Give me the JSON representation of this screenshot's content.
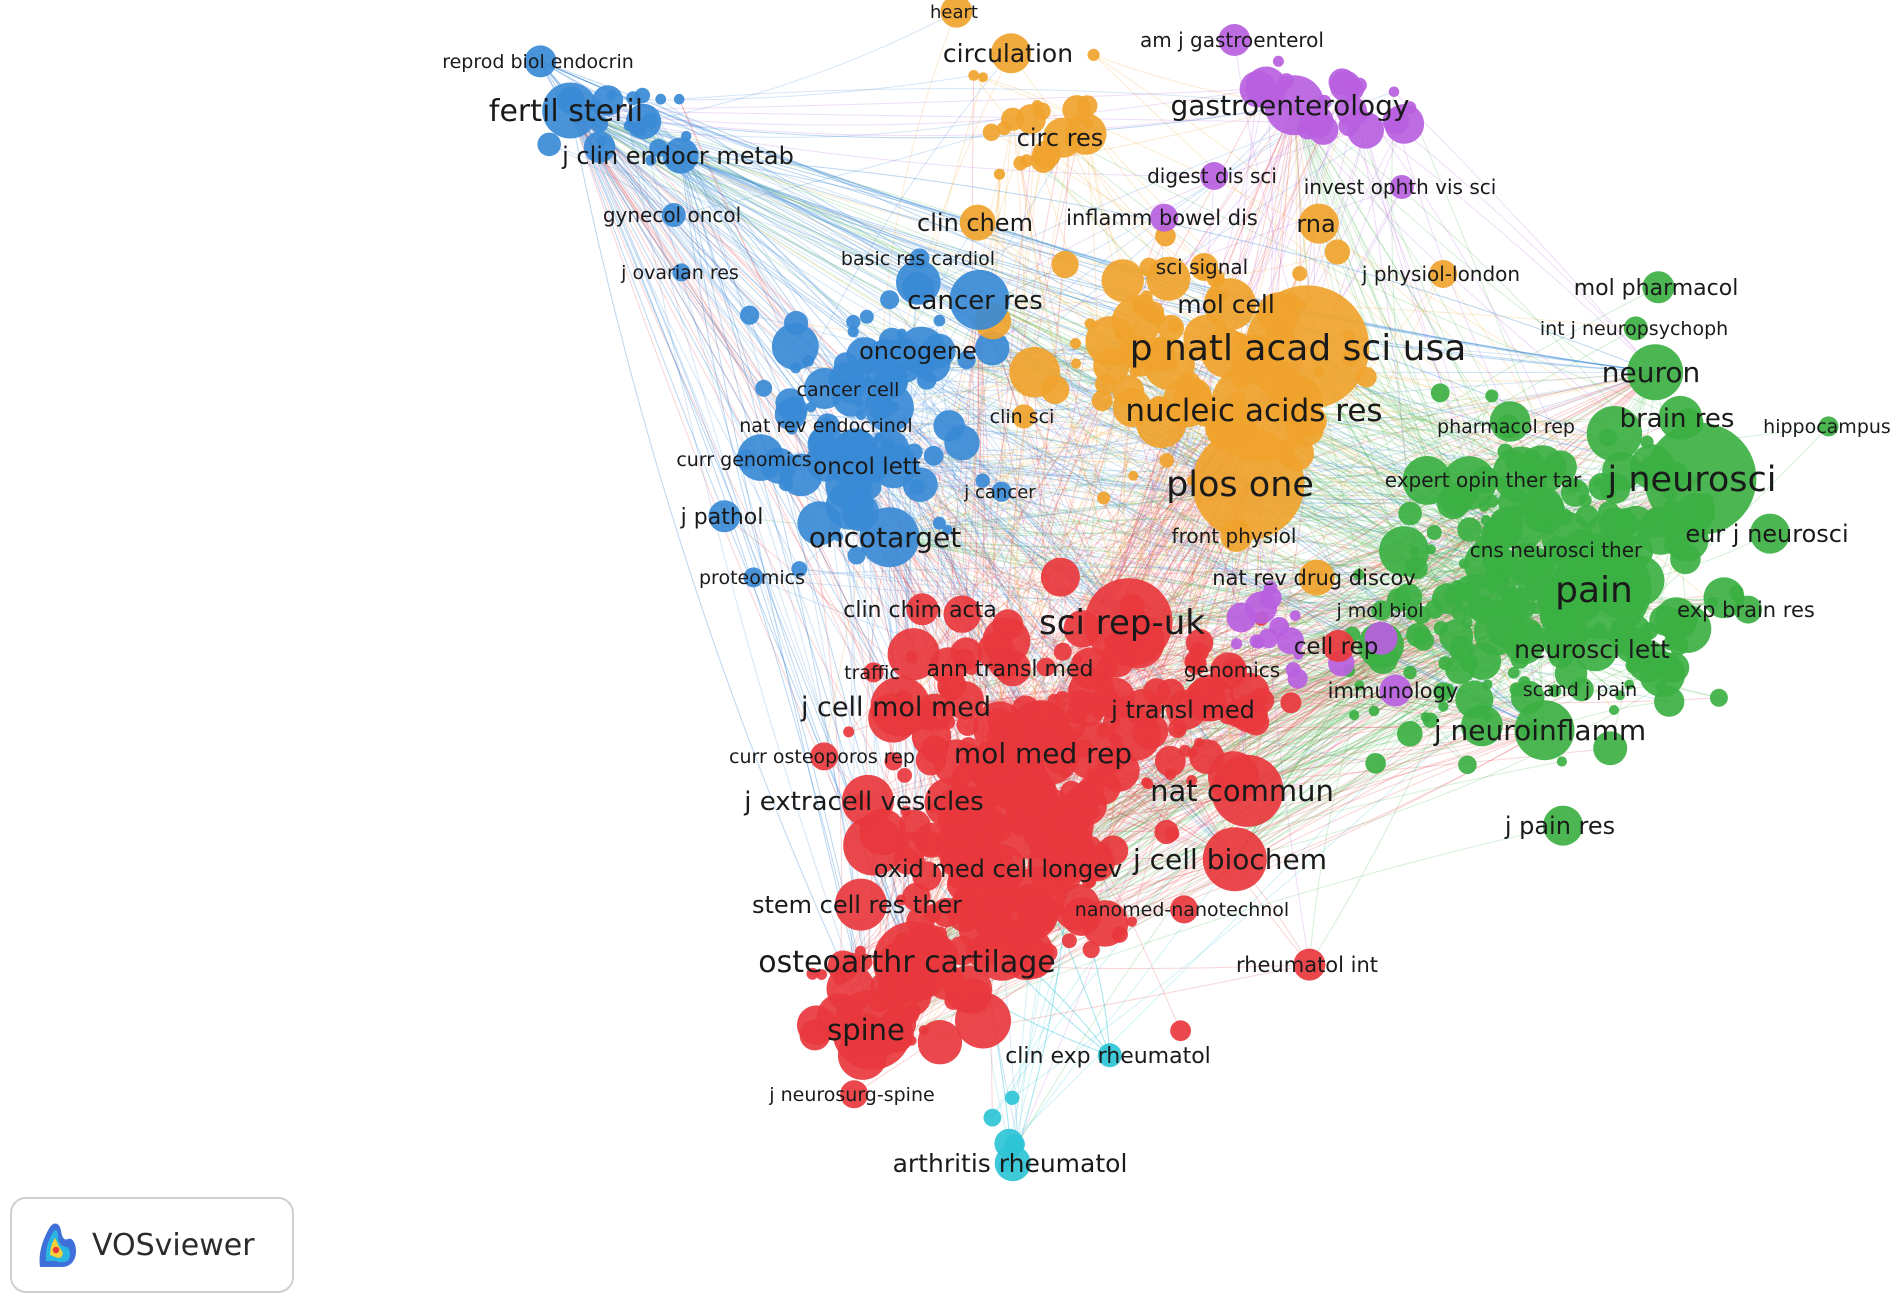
{
  "colors": {
    "red": "#e8383d",
    "green": "#3cb043",
    "blue": "#3a8ad6",
    "orange": "#f0a32c",
    "purple": "#b860e0",
    "cyan": "#2ec4d6"
  },
  "clusters": {
    "red": [
      "sci rep-uk",
      "j cell mol med",
      "mol med rep",
      "nat commun",
      "j extracell vesicles",
      "j cell biochem",
      "stem cell res ther",
      "osteoarthr cartilage",
      "spine",
      "clin chim acta",
      "ann transl med",
      "j transl med",
      "traffic",
      "curr osteoporos rep",
      "oxid med cell longev",
      "nanomed-nanotechnol",
      "rheumatol int",
      "j neurosurg-spine",
      "genomics",
      "cell rep"
    ],
    "green": [
      "j neurosci",
      "pain",
      "neuron",
      "brain res",
      "eur j neurosci",
      "neurosci lett",
      "j neuroinflamm",
      "j pain res",
      "mol pharmacol",
      "int j neuropsychoph",
      "hippocampus",
      "exp brain res",
      "cns neurosci ther",
      "scand j pain",
      "pharmacol rep",
      "expert opin ther tar",
      "j mol biol"
    ],
    "blue": [
      "fertil steril",
      "j clin endocr metab",
      "reprod biol endocrin",
      "gynecol oncol",
      "j ovarian res",
      "cancer res",
      "oncogene",
      "cancer cell",
      "nat rev endocrinol",
      "curr genomics",
      "oncol lett",
      "j pathol",
      "oncotarget",
      "proteomics",
      "j cancer",
      "basic res cardiol"
    ],
    "orange": [
      "p natl acad sci usa",
      "nucleic acids res",
      "plos one",
      "mol cell",
      "circulation",
      "circ res",
      "heart",
      "clin chem",
      "rna",
      "sci signal",
      "j physiol-london",
      "clin sci",
      "front physiol",
      "nat rev drug discov"
    ],
    "purple": [
      "gastroenterology",
      "am j gastroenterol",
      "digest dis sci",
      "inflamm bowel dis",
      "invest ophth vis sci",
      "immunology"
    ],
    "cyan": [
      "arthritis rheumatol",
      "clin exp rheumatol"
    ]
  },
  "labels": [
    {
      "text": "reprod biol endocrin",
      "cluster": "blue"
    },
    {
      "text": "fertil steril",
      "cluster": "blue"
    },
    {
      "text": "j clin endocr metab",
      "cluster": "blue"
    },
    {
      "text": "gynecol oncol",
      "cluster": "blue"
    },
    {
      "text": "j ovarian res",
      "cluster": "blue"
    },
    {
      "text": "basic res cardiol",
      "cluster": "blue"
    },
    {
      "text": "cancer res",
      "cluster": "blue"
    },
    {
      "text": "oncogene",
      "cluster": "blue"
    },
    {
      "text": "cancer cell",
      "cluster": "blue"
    },
    {
      "text": "nat rev endocrinol",
      "cluster": "blue"
    },
    {
      "text": "curr genomics",
      "cluster": "blue"
    },
    {
      "text": "oncol lett",
      "cluster": "blue"
    },
    {
      "text": "j pathol",
      "cluster": "blue"
    },
    {
      "text": "oncotarget",
      "cluster": "blue"
    },
    {
      "text": "proteomics",
      "cluster": "blue"
    },
    {
      "text": "j cancer",
      "cluster": "blue"
    },
    {
      "text": "heart",
      "cluster": "orange"
    },
    {
      "text": "circulation",
      "cluster": "orange"
    },
    {
      "text": "circ res",
      "cluster": "orange"
    },
    {
      "text": "clin chem",
      "cluster": "orange"
    },
    {
      "text": "rna",
      "cluster": "orange"
    },
    {
      "text": "sci signal",
      "cluster": "orange"
    },
    {
      "text": "j physiol-london",
      "cluster": "orange"
    },
    {
      "text": "mol cell",
      "cluster": "orange"
    },
    {
      "text": "p natl acad sci usa",
      "cluster": "orange"
    },
    {
      "text": "clin sci",
      "cluster": "orange"
    },
    {
      "text": "nucleic acids res",
      "cluster": "orange"
    },
    {
      "text": "plos one",
      "cluster": "orange"
    },
    {
      "text": "front physiol",
      "cluster": "orange"
    },
    {
      "text": "nat rev drug discov",
      "cluster": "orange"
    },
    {
      "text": "am j gastroenterol",
      "cluster": "purple"
    },
    {
      "text": "gastroenterology",
      "cluster": "purple"
    },
    {
      "text": "digest dis sci",
      "cluster": "purple"
    },
    {
      "text": "invest ophth vis sci",
      "cluster": "purple"
    },
    {
      "text": "inflamm bowel dis",
      "cluster": "purple"
    },
    {
      "text": "immunology",
      "cluster": "purple"
    },
    {
      "text": "mol pharmacol",
      "cluster": "green"
    },
    {
      "text": "int j neuropsychoph",
      "cluster": "green"
    },
    {
      "text": "neuron",
      "cluster": "green"
    },
    {
      "text": "brain res",
      "cluster": "green"
    },
    {
      "text": "hippocampus",
      "cluster": "green"
    },
    {
      "text": "pharmacol rep",
      "cluster": "green"
    },
    {
      "text": "expert opin ther tar",
      "cluster": "green"
    },
    {
      "text": "j neurosci",
      "cluster": "green"
    },
    {
      "text": "eur j neurosci",
      "cluster": "green"
    },
    {
      "text": "cns neurosci ther",
      "cluster": "green"
    },
    {
      "text": "pain",
      "cluster": "green"
    },
    {
      "text": "exp brain res",
      "cluster": "green"
    },
    {
      "text": "j mol biol",
      "cluster": "green"
    },
    {
      "text": "neurosci lett",
      "cluster": "green"
    },
    {
      "text": "scand j pain",
      "cluster": "green"
    },
    {
      "text": "j neuroinflamm",
      "cluster": "green"
    },
    {
      "text": "j pain res",
      "cluster": "green"
    },
    {
      "text": "clin chim acta",
      "cluster": "red"
    },
    {
      "text": "sci rep-uk",
      "cluster": "red"
    },
    {
      "text": "traffic",
      "cluster": "red"
    },
    {
      "text": "ann transl med",
      "cluster": "red"
    },
    {
      "text": "genomics",
      "cluster": "red"
    },
    {
      "text": "cell rep",
      "cluster": "red"
    },
    {
      "text": "j cell mol med",
      "cluster": "red"
    },
    {
      "text": "j transl med",
      "cluster": "red"
    },
    {
      "text": "curr osteoporos rep",
      "cluster": "red"
    },
    {
      "text": "mol med rep",
      "cluster": "red"
    },
    {
      "text": "nat commun",
      "cluster": "red"
    },
    {
      "text": "j extracell vesicles",
      "cluster": "red"
    },
    {
      "text": "oxid med cell longev",
      "cluster": "red"
    },
    {
      "text": "j cell biochem",
      "cluster": "red"
    },
    {
      "text": "stem cell res ther",
      "cluster": "red"
    },
    {
      "text": "nanomed-nanotechnol",
      "cluster": "red"
    },
    {
      "text": "osteoarthr cartilage",
      "cluster": "red"
    },
    {
      "text": "rheumatol int",
      "cluster": "red"
    },
    {
      "text": "spine",
      "cluster": "red"
    },
    {
      "text": "j neurosurg-spine",
      "cluster": "red"
    },
    {
      "text": "clin exp rheumatol",
      "cluster": "cyan"
    },
    {
      "text": "arthritis rheumatol",
      "cluster": "cyan"
    }
  ],
  "badge": {
    "label": "VOSviewer",
    "icon": "vosviewer-logo-icon"
  }
}
